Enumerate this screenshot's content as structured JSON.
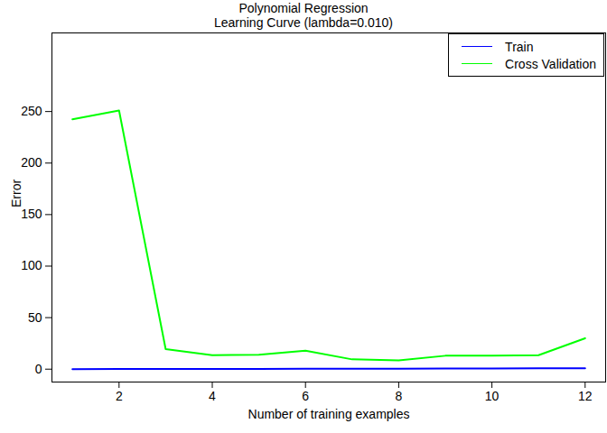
{
  "chart_data": {
    "type": "line",
    "title": "Polynomial Regression",
    "subtitle": "Learning Curve (lambda=0.010)",
    "x_label": "Number of training examples",
    "y_label": "Error",
    "x": [
      1,
      2,
      3,
      4,
      5,
      6,
      7,
      8,
      9,
      10,
      11,
      12
    ],
    "series": [
      {
        "name": "Train",
        "color": "#0000ff",
        "values": [
          0,
          0.1,
          0.2,
          0.2,
          0.3,
          0.4,
          0.5,
          0.5,
          0.7,
          0.7,
          0.8,
          0.9
        ]
      },
      {
        "name": "Cross Validation",
        "color": "#00ff00",
        "values": [
          242.5,
          251,
          19.5,
          13.5,
          14,
          18,
          9.5,
          8.5,
          13,
          13,
          13.5,
          30
        ]
      }
    ],
    "xlim": [
      0.56,
      12.44
    ],
    "xticks": [
      2,
      4,
      6,
      8,
      10,
      12
    ],
    "ylim": [
      -12.5,
      326.3
    ],
    "yticks": [
      0,
      50,
      100,
      150,
      200,
      250
    ],
    "legend": "topright"
  }
}
